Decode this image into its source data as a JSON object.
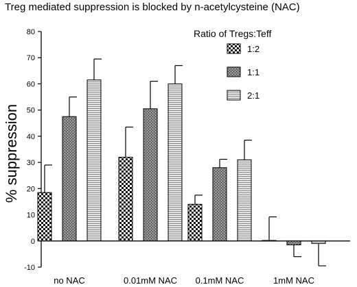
{
  "chart_data": {
    "type": "bar",
    "title": "Treg mediated suppression is blocked by n-acetylcysteine (NAC)",
    "ylabel": "% suppression",
    "xlabel": "",
    "ylim": [
      -10,
      80
    ],
    "yticks": [
      -10,
      0,
      10,
      20,
      30,
      40,
      50,
      60,
      70,
      80
    ],
    "categories": [
      "no NAC",
      "0.01mM NAC",
      "0.1mM NAC",
      "1mM NAC"
    ],
    "legend_title": "Ratio of Tregs:Teff",
    "legend_position": "top-right",
    "grid": false,
    "series": [
      {
        "name": "1:2",
        "pattern": "checker",
        "values": [
          18.5,
          32,
          14,
          0.2
        ],
        "errors": [
          10.5,
          11.5,
          3.5,
          9
        ]
      },
      {
        "name": "1:1",
        "pattern": "dark-stipple",
        "values": [
          47.5,
          50.5,
          28,
          -1.5
        ],
        "errors": [
          7.5,
          10.5,
          3.2,
          4.5
        ]
      },
      {
        "name": "2:1",
        "pattern": "h-lines",
        "values": [
          61.5,
          60,
          31,
          -1
        ],
        "errors": [
          8,
          7,
          7.5,
          8.5
        ]
      }
    ]
  }
}
